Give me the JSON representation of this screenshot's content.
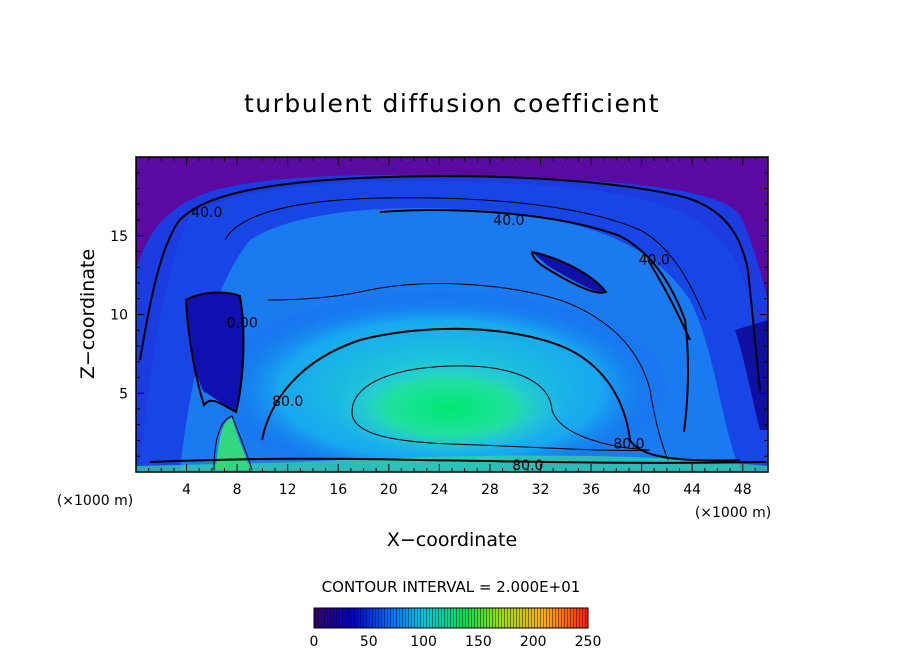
{
  "chart_data": {
    "type": "heatmap",
    "title": "turbulent diffusion coefficient",
    "xlabel": "X−coordinate",
    "ylabel": "Z−coordinate",
    "x_unit": "(×1000 m)",
    "x_unit_right": "(×1000 m)",
    "xlim": [
      0,
      50
    ],
    "ylim": [
      0,
      20
    ],
    "xticks": [
      4,
      8,
      12,
      16,
      20,
      24,
      28,
      32,
      36,
      40,
      44,
      48
    ],
    "yticks": [
      5,
      10,
      15
    ],
    "contour_interval_text": "CONTOUR INTERVAL = 2.000E+01",
    "contour_labels": [
      {
        "text": "40.0",
        "x": 5.6,
        "z": 16.5
      },
      {
        "text": "40.0",
        "x": 29.5,
        "z": 16.0
      },
      {
        "text": "40.0",
        "x": 41.0,
        "z": 13.5
      },
      {
        "text": "0.00",
        "x": 8.4,
        "z": 9.5
      },
      {
        "text": "80.0",
        "x": 12.0,
        "z": 4.5
      },
      {
        "text": "80.0",
        "x": 39.0,
        "z": 1.8
      },
      {
        "text": "80.0",
        "x": 31.0,
        "z": 0.45
      }
    ],
    "colorbar": {
      "range": [
        0,
        250
      ],
      "tick_labels": [
        "0",
        "50",
        "100",
        "150",
        "200",
        "250"
      ],
      "colors": [
        "#3a006e",
        "#0000c8",
        "#0070ff",
        "#00c8e0",
        "#00e060",
        "#a0e000",
        "#ffb000",
        "#ff2000"
      ]
    }
  }
}
